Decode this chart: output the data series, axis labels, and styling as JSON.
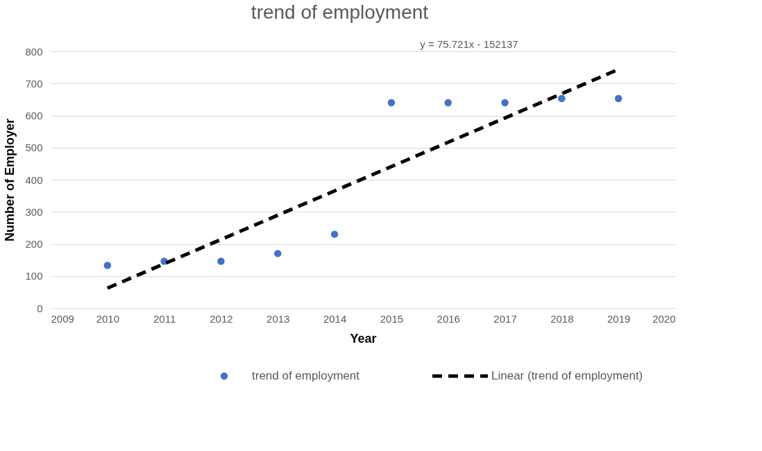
{
  "chart_data": {
    "type": "scatter",
    "title": "trend of employment",
    "xlabel": "Year",
    "ylabel": "Number of Employer",
    "x": [
      2010,
      2011,
      2012,
      2013,
      2014,
      2015,
      2016,
      2017,
      2018,
      2019
    ],
    "series": [
      {
        "name": "trend of employment",
        "color": "#4472c4",
        "marker": "circle",
        "values": [
          133,
          146,
          146,
          170,
          230,
          640,
          640,
          640,
          653,
          653
        ]
      },
      {
        "name": "Linear (trend of employment)",
        "type": "line",
        "color": "#000000",
        "line_style": "dashed",
        "marker": "none",
        "x": [
          2010,
          2019
        ],
        "values": [
          62.2,
          743.7
        ]
      }
    ],
    "annotations": [
      "y = 75.721x - 152137"
    ],
    "xlim": [
      2009,
      2020
    ],
    "xticks": [
      2009,
      2010,
      2011,
      2012,
      2013,
      2014,
      2015,
      2016,
      2017,
      2018,
      2019,
      2020
    ],
    "ylim": [
      0,
      800
    ],
    "yticks": [
      0,
      100,
      200,
      300,
      400,
      500,
      600,
      700,
      800
    ],
    "grid": "y",
    "legend": "bottom"
  }
}
